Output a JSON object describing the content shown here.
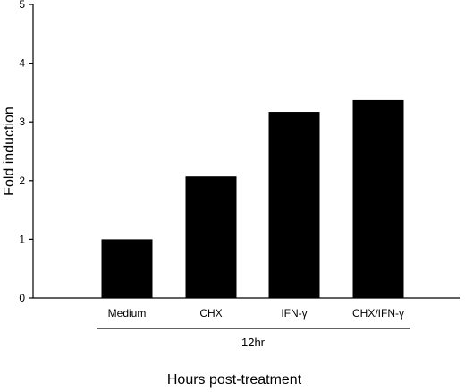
{
  "chart_data": {
    "type": "bar",
    "categories": [
      "Medium",
      "CHX",
      "IFN-γ",
      "CHX/IFN-γ"
    ],
    "values": [
      1.0,
      2.07,
      3.17,
      3.37
    ],
    "title": "",
    "xlabel": "Hours post-treatment",
    "ylabel": "Fold induction",
    "ylim": [
      0,
      5
    ],
    "yticks": [
      "0",
      "1",
      "2",
      "3",
      "4",
      "5"
    ],
    "group_label": "12hr",
    "grid": false,
    "bar_color": "#000000"
  }
}
